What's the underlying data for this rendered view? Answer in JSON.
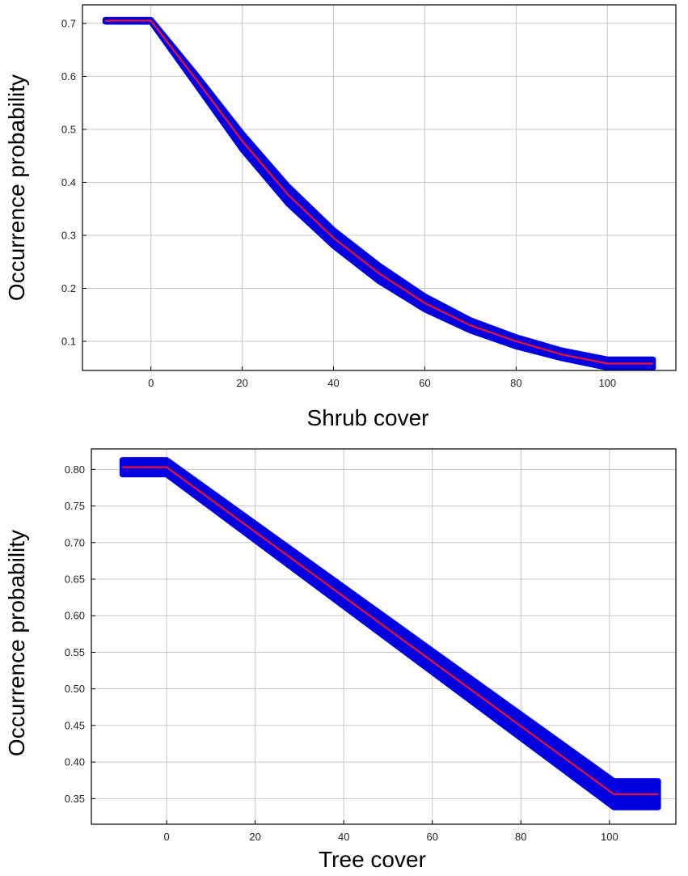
{
  "chart_data": [
    {
      "type": "line",
      "xlabel": "Shrub cover",
      "ylabel": "Occurrence probability",
      "xlim": [
        -15,
        115
      ],
      "ylim": [
        0.045,
        0.735
      ],
      "x_ticks": [
        0,
        20,
        40,
        60,
        80,
        100
      ],
      "y_ticks": [
        0.1,
        0.2,
        0.3,
        0.4,
        0.5,
        0.6,
        0.7
      ],
      "y_tick_labels": [
        "0.1",
        "0.2",
        "0.3",
        "0.4",
        "0.5",
        "0.6",
        "0.7"
      ],
      "grid": true,
      "series": [
        {
          "x": [
            -10,
            0,
            10,
            20,
            30,
            40,
            50,
            60,
            70,
            80,
            90,
            100,
            110
          ],
          "y": [
            0.705,
            0.705,
            0.593,
            0.478,
            0.377,
            0.295,
            0.228,
            0.172,
            0.13,
            0.1,
            0.075,
            0.058,
            0.058
          ],
          "lower": [
            0.703,
            0.703,
            0.583,
            0.462,
            0.36,
            0.28,
            0.213,
            0.16,
            0.12,
            0.09,
            0.068,
            0.05,
            0.05
          ],
          "upper": [
            0.707,
            0.707,
            0.602,
            0.492,
            0.393,
            0.31,
            0.243,
            0.185,
            0.14,
            0.108,
            0.083,
            0.066,
            0.066
          ]
        }
      ],
      "colors": {
        "band": "#0000e0",
        "line": "#ee1133"
      }
    },
    {
      "type": "line",
      "xlabel": "Tree cover",
      "ylabel": "Occurrence probability",
      "xlim": [
        -17,
        115
      ],
      "ylim": [
        0.315,
        0.828
      ],
      "x_ticks": [
        0,
        20,
        40,
        60,
        80,
        100
      ],
      "y_ticks": [
        0.35,
        0.4,
        0.45,
        0.5,
        0.55,
        0.6,
        0.65,
        0.7,
        0.75,
        0.8
      ],
      "y_tick_labels": [
        "0.35",
        "0.40",
        "0.45",
        "0.50",
        "0.55",
        "0.60",
        "0.65",
        "0.70",
        "0.75",
        "0.80"
      ],
      "grid": true,
      "series": [
        {
          "x": [
            -10,
            0,
            101,
            111
          ],
          "y": [
            0.803,
            0.803,
            0.356,
            0.356
          ],
          "lower": [
            0.793,
            0.793,
            0.338,
            0.338
          ],
          "upper": [
            0.813,
            0.813,
            0.374,
            0.374
          ]
        }
      ],
      "colors": {
        "band": "#0000e0",
        "line": "#ee1133"
      }
    }
  ]
}
